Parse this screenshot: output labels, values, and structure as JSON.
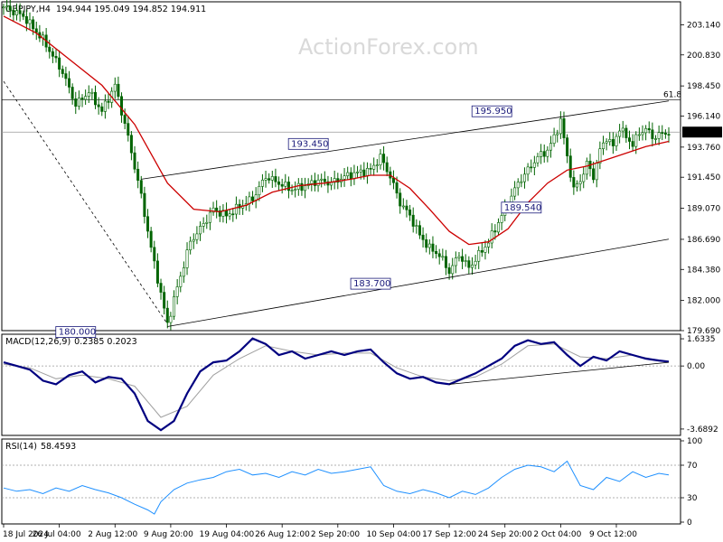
{
  "header": {
    "symbol": "GBPJPY,H4",
    "ohlc": "194.944 195.049 194.852 194.911"
  },
  "watermark": "ActionForex.com",
  "colors": {
    "candle": "#006400",
    "ma": "#cc0000",
    "macd": "#000080",
    "signal": "#a0a0a0",
    "rsi": "#1e90ff",
    "trend": "#000000"
  },
  "chart_data": [
    {
      "type": "candlestick",
      "ylim": [
        179.69,
        204.9
      ],
      "yticks": [
        "203.140",
        "200.830",
        "198.450",
        "196.140",
        "193.760",
        "191.450",
        "189.070",
        "186.690",
        "184.380",
        "182.000",
        "179.690"
      ],
      "xticks": [
        "18 Jul 2024",
        "26 Jul 04:00",
        "2 Aug 12:00",
        "9 Aug 20:00",
        "19 Aug 04:00",
        "26 Aug 12:00",
        "2 Sep 20:00",
        "10 Sep 04:00",
        "17 Sep 12:00",
        "24 Sep 20:00",
        "2 Oct 04:00",
        "9 Oct 12:00"
      ],
      "last_price": "194.911",
      "fib_label": "61.8",
      "fib_level": 197.4,
      "levels": [
        {
          "label": "195.950",
          "value": 195.95
        },
        {
          "label": "193.450",
          "value": 193.45
        },
        {
          "label": "189.540",
          "value": 189.54
        },
        {
          "label": "183.700",
          "value": 183.7
        },
        {
          "label": "180.000",
          "value": 180.0
        }
      ],
      "close_path": [
        [
          0,
          204.5
        ],
        [
          6,
          203.8
        ],
        [
          12,
          202.0
        ],
        [
          18,
          199.5
        ],
        [
          22,
          197.0
        ],
        [
          26,
          198.0
        ],
        [
          30,
          196.5
        ],
        [
          34,
          198.5
        ],
        [
          38,
          194.5
        ],
        [
          42,
          190.0
        ],
        [
          45,
          186.0
        ],
        [
          48,
          182.5
        ],
        [
          50,
          180.2
        ],
        [
          53,
          183.0
        ],
        [
          57,
          186.5
        ],
        [
          60,
          187.5
        ],
        [
          64,
          189.0
        ],
        [
          68,
          188.5
        ],
        [
          72,
          189.2
        ],
        [
          76,
          189.8
        ],
        [
          80,
          191.5
        ],
        [
          84,
          191.0
        ],
        [
          88,
          190.5
        ],
        [
          92,
          190.8
        ],
        [
          96,
          191.2
        ],
        [
          100,
          191.0
        ],
        [
          104,
          191.5
        ],
        [
          108,
          191.8
        ],
        [
          112,
          192.0
        ],
        [
          115,
          193.0
        ],
        [
          118,
          191.5
        ],
        [
          121,
          189.5
        ],
        [
          124,
          188.5
        ],
        [
          127,
          187.0
        ],
        [
          130,
          186.0
        ],
        [
          133,
          185.5
        ],
        [
          136,
          184.2
        ],
        [
          139,
          185.5
        ],
        [
          142,
          184.5
        ],
        [
          145,
          185.5
        ],
        [
          148,
          186.5
        ],
        [
          151,
          188.0
        ],
        [
          154,
          189.5
        ],
        [
          157,
          191.0
        ],
        [
          160,
          192.0
        ],
        [
          163,
          193.0
        ],
        [
          166,
          193.5
        ],
        [
          168,
          194.5
        ],
        [
          170,
          195.8
        ],
        [
          172,
          193.0
        ],
        [
          174,
          190.5
        ],
        [
          176,
          191.2
        ],
        [
          178,
          192.5
        ],
        [
          180,
          191.5
        ],
        [
          182,
          193.5
        ],
        [
          184,
          194.5
        ],
        [
          186,
          193.8
        ],
        [
          188,
          195.3
        ],
        [
          190,
          194.5
        ],
        [
          192,
          194.0
        ],
        [
          194,
          194.8
        ],
        [
          196,
          195.2
        ],
        [
          198,
          194.5
        ],
        [
          200,
          194.7
        ],
        [
          203,
          194.9
        ]
      ],
      "ma_path": [
        [
          0,
          203.8
        ],
        [
          10,
          202.5
        ],
        [
          20,
          200.5
        ],
        [
          30,
          198.5
        ],
        [
          40,
          195.5
        ],
        [
          50,
          191.0
        ],
        [
          58,
          189.0
        ],
        [
          66,
          188.8
        ],
        [
          74,
          189.3
        ],
        [
          82,
          190.3
        ],
        [
          90,
          190.8
        ],
        [
          98,
          191.0
        ],
        [
          106,
          191.3
        ],
        [
          112,
          191.6
        ],
        [
          118,
          191.6
        ],
        [
          124,
          190.6
        ],
        [
          130,
          189.0
        ],
        [
          136,
          187.3
        ],
        [
          142,
          186.3
        ],
        [
          148,
          186.5
        ],
        [
          154,
          187.5
        ],
        [
          160,
          189.5
        ],
        [
          166,
          191.0
        ],
        [
          172,
          192.0
        ],
        [
          178,
          192.3
        ],
        [
          184,
          192.8
        ],
        [
          190,
          193.3
        ],
        [
          196,
          193.8
        ],
        [
          203,
          194.2
        ]
      ],
      "trendlines": [
        {
          "from": [
            50,
            180.0
          ],
          "to": [
            203,
            186.7
          ]
        },
        {
          "from": [
            42,
            191.3
          ],
          "to": [
            203,
            197.3
          ]
        },
        {
          "from": [
            0,
            198.8
          ],
          "to": [
            50,
            180.2
          ],
          "dashed": true
        }
      ]
    },
    {
      "type": "line",
      "name": "MACD(12,26,9)",
      "header_values": "0.2385 0.2023",
      "ylim": [
        -3.6892,
        1.6335
      ],
      "yticks": [
        "1.6335",
        "0.00",
        "-3.6892"
      ],
      "macd": [
        [
          0,
          0.2
        ],
        [
          4,
          0.0
        ],
        [
          8,
          -0.2
        ],
        [
          12,
          -0.8
        ],
        [
          16,
          -1.0
        ],
        [
          20,
          -0.5
        ],
        [
          24,
          -0.3
        ],
        [
          28,
          -0.9
        ],
        [
          32,
          -0.6
        ],
        [
          36,
          -0.7
        ],
        [
          40,
          -1.5
        ],
        [
          44,
          -3.0
        ],
        [
          48,
          -3.5
        ],
        [
          52,
          -3.0
        ],
        [
          56,
          -1.5
        ],
        [
          60,
          -0.3
        ],
        [
          64,
          0.2
        ],
        [
          68,
          0.3
        ],
        [
          72,
          0.8
        ],
        [
          76,
          1.5
        ],
        [
          80,
          1.2
        ],
        [
          84,
          0.6
        ],
        [
          88,
          0.8
        ],
        [
          92,
          0.4
        ],
        [
          96,
          0.6
        ],
        [
          100,
          0.8
        ],
        [
          104,
          0.6
        ],
        [
          108,
          0.8
        ],
        [
          112,
          0.9
        ],
        [
          116,
          0.2
        ],
        [
          120,
          -0.4
        ],
        [
          124,
          -0.7
        ],
        [
          128,
          -0.6
        ],
        [
          132,
          -0.9
        ],
        [
          136,
          -1.0
        ],
        [
          140,
          -0.7
        ],
        [
          144,
          -0.4
        ],
        [
          148,
          0.0
        ],
        [
          152,
          0.4
        ],
        [
          156,
          1.1
        ],
        [
          160,
          1.4
        ],
        [
          164,
          1.2
        ],
        [
          168,
          1.3
        ],
        [
          172,
          0.6
        ],
        [
          176,
          0.0
        ],
        [
          180,
          0.5
        ],
        [
          184,
          0.3
        ],
        [
          188,
          0.8
        ],
        [
          192,
          0.6
        ],
        [
          196,
          0.4
        ],
        [
          200,
          0.3
        ],
        [
          203,
          0.24
        ]
      ],
      "signal": [
        [
          0,
          0.1
        ],
        [
          8,
          -0.1
        ],
        [
          16,
          -0.7
        ],
        [
          24,
          -0.5
        ],
        [
          32,
          -0.7
        ],
        [
          40,
          -1.1
        ],
        [
          48,
          -2.8
        ],
        [
          56,
          -2.2
        ],
        [
          64,
          -0.5
        ],
        [
          72,
          0.4
        ],
        [
          80,
          1.1
        ],
        [
          88,
          0.8
        ],
        [
          96,
          0.6
        ],
        [
          104,
          0.7
        ],
        [
          112,
          0.7
        ],
        [
          120,
          -0.1
        ],
        [
          128,
          -0.6
        ],
        [
          136,
          -0.8
        ],
        [
          144,
          -0.6
        ],
        [
          152,
          0.1
        ],
        [
          160,
          1.1
        ],
        [
          168,
          1.2
        ],
        [
          176,
          0.5
        ],
        [
          184,
          0.4
        ],
        [
          192,
          0.6
        ],
        [
          200,
          0.3
        ],
        [
          203,
          0.2
        ]
      ],
      "trendline": {
        "from": [
          136,
          -1.0
        ],
        "to": [
          203,
          0.2
        ]
      }
    },
    {
      "type": "line",
      "name": "RSI(14)",
      "header_values": "58.4593",
      "ylim": [
        0,
        100
      ],
      "yticks": [
        "100",
        "70",
        "30",
        "0"
      ],
      "levels": [
        70,
        30
      ],
      "rsi": [
        [
          0,
          42
        ],
        [
          4,
          38
        ],
        [
          8,
          40
        ],
        [
          12,
          35
        ],
        [
          16,
          42
        ],
        [
          20,
          38
        ],
        [
          24,
          45
        ],
        [
          28,
          40
        ],
        [
          32,
          36
        ],
        [
          36,
          30
        ],
        [
          40,
          22
        ],
        [
          44,
          15
        ],
        [
          46,
          10
        ],
        [
          48,
          25
        ],
        [
          52,
          40
        ],
        [
          56,
          48
        ],
        [
          60,
          52
        ],
        [
          64,
          55
        ],
        [
          68,
          62
        ],
        [
          72,
          65
        ],
        [
          76,
          58
        ],
        [
          80,
          60
        ],
        [
          84,
          55
        ],
        [
          88,
          62
        ],
        [
          92,
          58
        ],
        [
          96,
          65
        ],
        [
          100,
          60
        ],
        [
          104,
          62
        ],
        [
          108,
          65
        ],
        [
          112,
          68
        ],
        [
          116,
          45
        ],
        [
          120,
          38
        ],
        [
          124,
          35
        ],
        [
          128,
          40
        ],
        [
          132,
          36
        ],
        [
          136,
          30
        ],
        [
          140,
          38
        ],
        [
          144,
          34
        ],
        [
          148,
          42
        ],
        [
          152,
          55
        ],
        [
          156,
          65
        ],
        [
          160,
          70
        ],
        [
          164,
          68
        ],
        [
          168,
          62
        ],
        [
          172,
          75
        ],
        [
          176,
          45
        ],
        [
          180,
          40
        ],
        [
          184,
          55
        ],
        [
          188,
          50
        ],
        [
          192,
          62
        ],
        [
          196,
          55
        ],
        [
          200,
          60
        ],
        [
          203,
          58
        ]
      ]
    }
  ]
}
